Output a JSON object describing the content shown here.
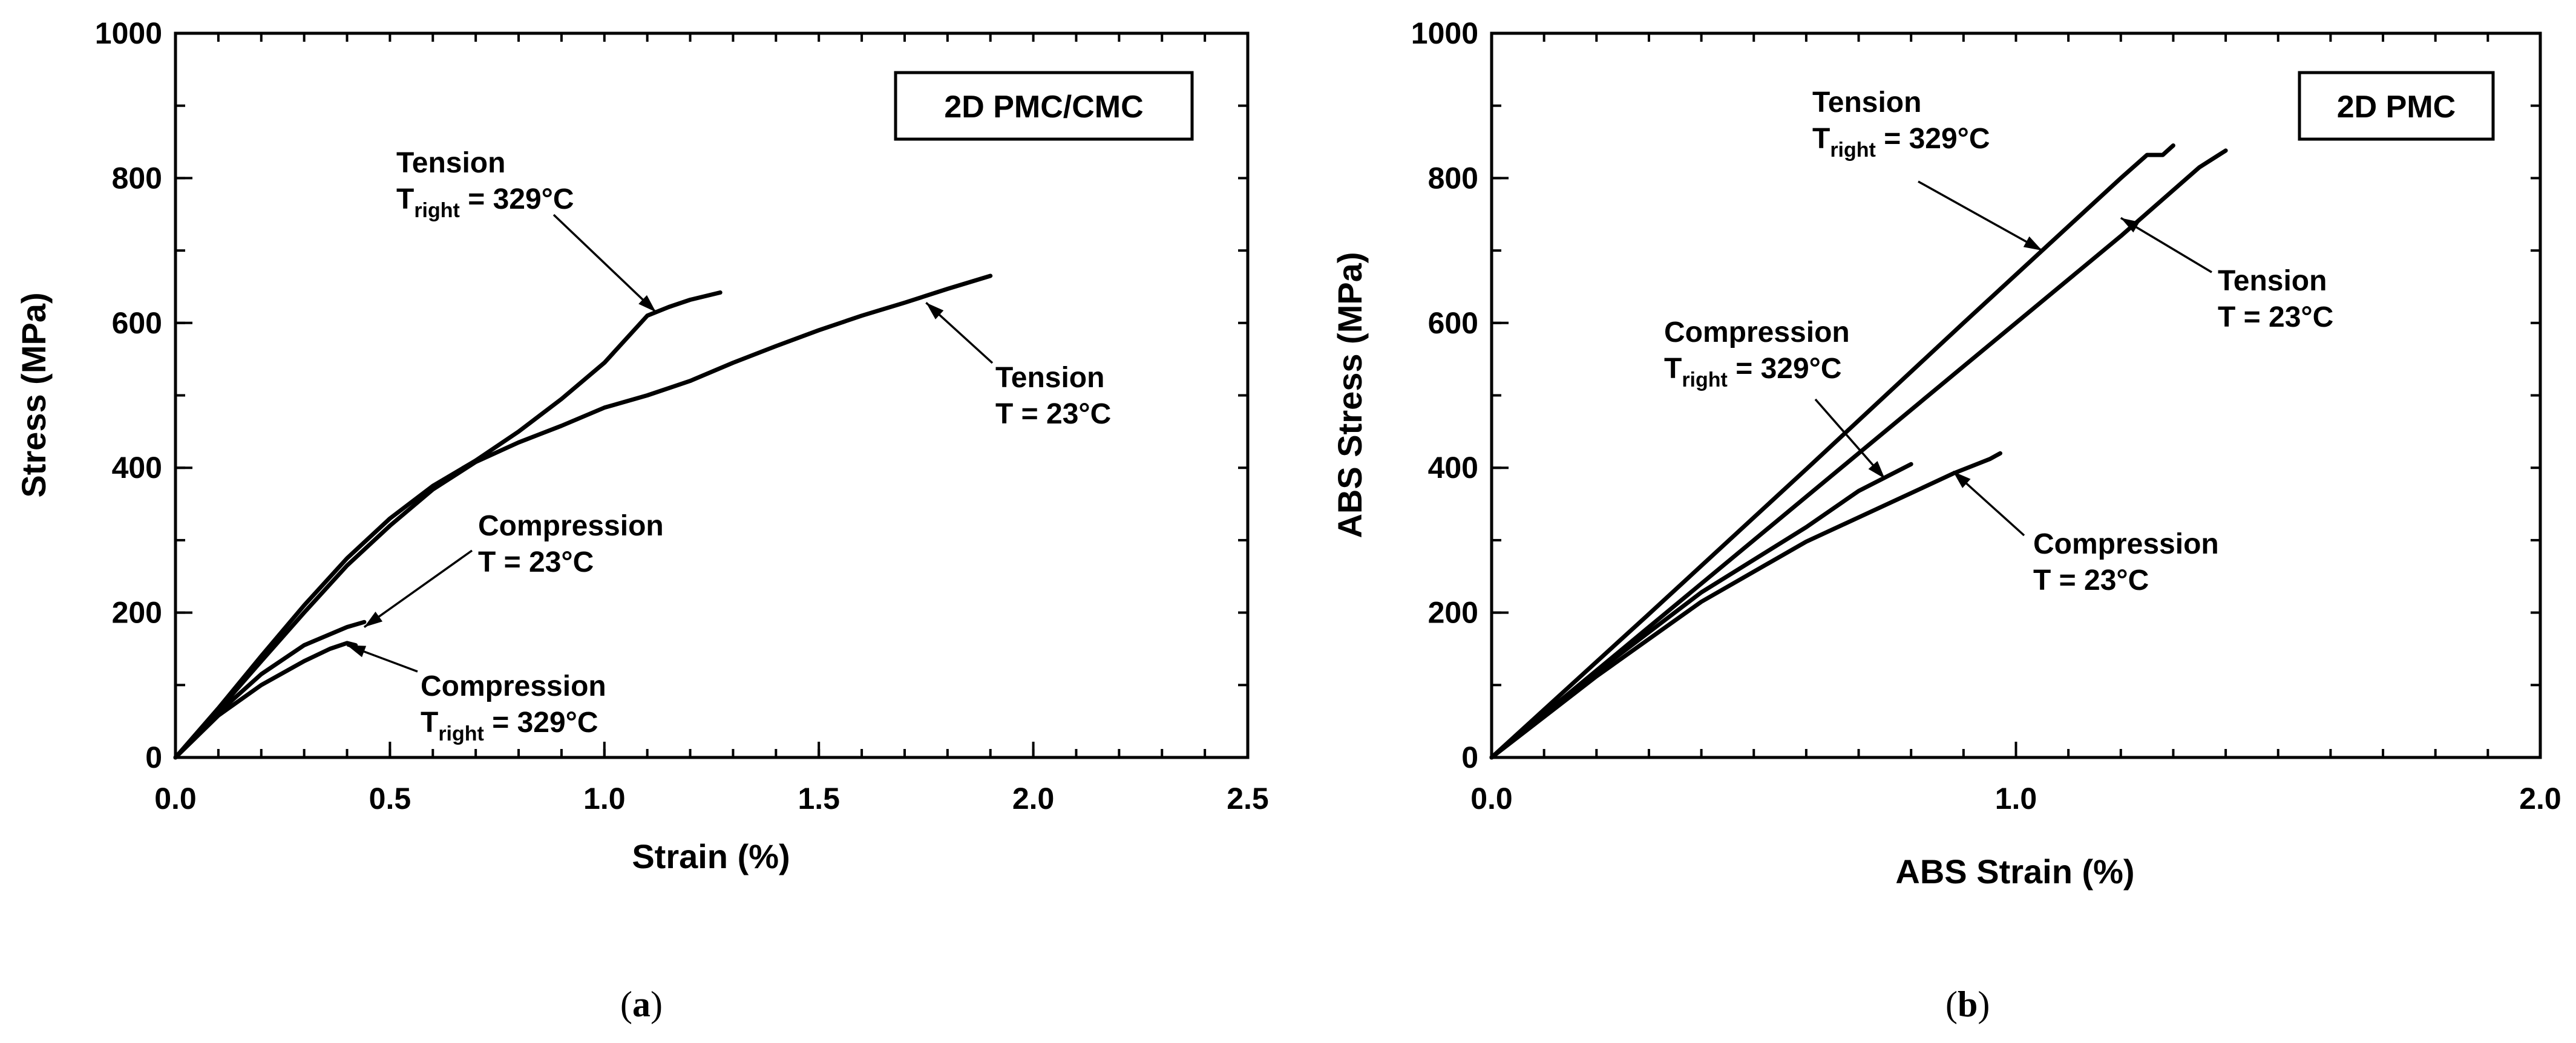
{
  "chart_data": [
    {
      "type": "line",
      "panel": "a",
      "caption_open": "(",
      "caption_letter": "a",
      "caption_close": ")",
      "box_label": "2D PMC/CMC",
      "xlabel": "Strain (%)",
      "ylabel": "Stress (MPa)",
      "xlim": [
        0,
        2.5
      ],
      "ylim": [
        0,
        1000
      ],
      "xticks": [
        0,
        0.5,
        1.0,
        1.5,
        2.0,
        2.5
      ],
      "xtick_labels": [
        "0.0",
        "0.5",
        "1.0",
        "1.5",
        "2.0",
        "2.5"
      ],
      "xminor_step": 0.1,
      "yticks": [
        0,
        200,
        400,
        600,
        800,
        1000
      ],
      "ytick_labels": [
        "0",
        "200",
        "400",
        "600",
        "800",
        "1000"
      ],
      "yminor_step": 100,
      "series": [
        {
          "name": "Tension T = 23°C",
          "x": [
            0,
            0.1,
            0.2,
            0.3,
            0.4,
            0.5,
            0.6,
            0.7,
            0.8,
            0.9,
            1.0,
            1.1,
            1.2,
            1.3,
            1.4,
            1.5,
            1.6,
            1.7,
            1.8,
            1.9
          ],
          "y": [
            0,
            65,
            133,
            200,
            265,
            320,
            370,
            408,
            435,
            458,
            483,
            500,
            520,
            545,
            568,
            590,
            610,
            628,
            647,
            665
          ]
        },
        {
          "name": "Tension Tright = 329°C",
          "x": [
            0,
            0.1,
            0.2,
            0.3,
            0.4,
            0.5,
            0.6,
            0.7,
            0.8,
            0.9,
            1.0,
            1.1,
            1.15,
            1.2,
            1.27
          ],
          "y": [
            0,
            68,
            140,
            210,
            275,
            330,
            375,
            410,
            450,
            495,
            545,
            610,
            622,
            632,
            642
          ]
        },
        {
          "name": "Compression T = 23°C",
          "x": [
            0,
            0.1,
            0.2,
            0.3,
            0.4,
            0.44
          ],
          "y": [
            0,
            62,
            115,
            155,
            180,
            187
          ]
        },
        {
          "name": "Compression Tright = 329°C",
          "x": [
            0,
            0.1,
            0.2,
            0.3,
            0.36,
            0.4,
            0.42
          ],
          "y": [
            0,
            58,
            100,
            133,
            150,
            158,
            155
          ]
        }
      ],
      "annotations": [
        {
          "line1": "Tension",
          "line2_main": "T",
          "line2_sub": "right",
          "line2_rest": " = 329°C",
          "target": [
            1.12,
            615
          ]
        },
        {
          "line1": "Tension",
          "line2_main": "T = 23°C",
          "line2_sub": "",
          "line2_rest": "",
          "target": [
            1.75,
            628
          ]
        },
        {
          "line1": "Compression",
          "line2_main": "T = 23°C",
          "line2_sub": "",
          "line2_rest": "",
          "target": [
            0.44,
            180
          ]
        },
        {
          "line1": "Compression",
          "line2_main": "T",
          "line2_sub": "right",
          "line2_rest": " = 329°C",
          "target": [
            0.4,
            155
          ]
        }
      ]
    },
    {
      "type": "line",
      "panel": "b",
      "caption_open": "(",
      "caption_letter": "b",
      "caption_close": ")",
      "box_label": "2D PMC",
      "xlabel": "ABS Strain (%)",
      "ylabel": "ABS Stress (MPa)",
      "xlim": [
        0,
        2.0
      ],
      "ylim": [
        0,
        1000
      ],
      "xticks": [
        0,
        1.0,
        2.0
      ],
      "xtick_labels": [
        "0.0",
        "1.0",
        "2.0"
      ],
      "xminor_step": 0.1,
      "yticks": [
        0,
        200,
        400,
        600,
        800,
        1000
      ],
      "ytick_labels": [
        "0",
        "200",
        "400",
        "600",
        "800",
        "1000"
      ],
      "yminor_step": 100,
      "series": [
        {
          "name": "Tension Tright = 329°C",
          "x": [
            0,
            0.3,
            0.6,
            0.9,
            1.2,
            1.25,
            1.28,
            1.3
          ],
          "y": [
            0,
            198,
            398,
            600,
            800,
            832,
            832,
            845
          ]
        },
        {
          "name": "Tension T = 23°C",
          "x": [
            0,
            0.3,
            0.6,
            0.9,
            1.2,
            1.35,
            1.4
          ],
          "y": [
            0,
            180,
            360,
            540,
            720,
            815,
            838
          ]
        },
        {
          "name": "Compression Tright = 329°C",
          "x": [
            0,
            0.2,
            0.4,
            0.6,
            0.7,
            0.8
          ],
          "y": [
            0,
            118,
            228,
            318,
            368,
            405
          ]
        },
        {
          "name": "Compression T = 23°C",
          "x": [
            0,
            0.2,
            0.4,
            0.6,
            0.8,
            0.88,
            0.95,
            0.97
          ],
          "y": [
            0,
            112,
            215,
            298,
            365,
            392,
            412,
            420
          ]
        }
      ],
      "annotations": [
        {
          "line1": "Tension",
          "line2_main": "T",
          "line2_sub": "right",
          "line2_rest": " = 329°C",
          "target": [
            1.05,
            700
          ]
        },
        {
          "line1": "Tension",
          "line2_main": "T = 23°C",
          "line2_sub": "",
          "line2_rest": "",
          "target": [
            1.2,
            745
          ]
        },
        {
          "line1": "Compression",
          "line2_main": "T",
          "line2_sub": "right",
          "line2_rest": " = 329°C",
          "target": [
            0.75,
            385
          ]
        },
        {
          "line1": "Compression",
          "line2_main": "T = 23°C",
          "line2_sub": "",
          "line2_rest": "",
          "target": [
            0.88,
            395
          ]
        }
      ]
    }
  ]
}
